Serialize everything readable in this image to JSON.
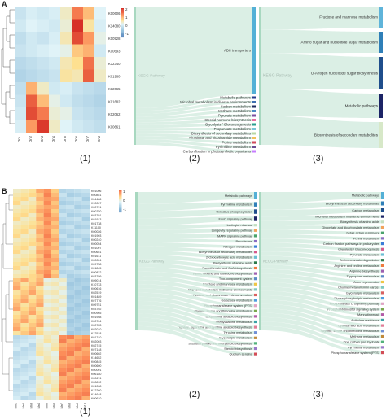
{
  "panels": {
    "A": {
      "letter": "A",
      "heatmap": {
        "rows": [
          "K00606",
          "K14080",
          "K00928",
          "K00693",
          "K12340",
          "K01960",
          "K12065",
          "K01682",
          "K02062",
          "K00661"
        ],
        "cols": [
          "Dn1",
          "Dn2",
          "Dn3",
          "Dn4",
          "Dn5",
          "Dn6",
          "Dn7",
          "Dn8"
        ],
        "values": [
          [
            -0.3,
            -0.1,
            -0.2,
            -0.1,
            0.3,
            1.5,
            0.9,
            0.0
          ],
          [
            -0.2,
            0.0,
            -0.1,
            -0.2,
            0.2,
            2.3,
            0.5,
            -0.1
          ],
          [
            -0.4,
            -0.2,
            -0.3,
            -0.1,
            0.4,
            2.0,
            1.2,
            0.1
          ],
          [
            -0.3,
            -0.2,
            -0.1,
            0.0,
            0.1,
            0.8,
            1.0,
            -0.2
          ],
          [
            -0.5,
            -0.4,
            -0.3,
            -0.2,
            0.4,
            0.6,
            1.6,
            0.2
          ],
          [
            -0.6,
            -0.5,
            -0.4,
            -0.3,
            0.5,
            0.4,
            1.8,
            0.3
          ],
          [
            -0.4,
            1.0,
            0.3,
            -0.2,
            -0.1,
            -0.3,
            -0.4,
            -0.5
          ],
          [
            -0.3,
            1.8,
            0.9,
            0.1,
            -0.2,
            -0.4,
            -0.5,
            -0.6
          ],
          [
            -0.2,
            2.0,
            1.5,
            0.2,
            0.1,
            -0.3,
            -0.4,
            -0.5
          ],
          [
            -0.1,
            1.2,
            2.2,
            0.3,
            0.0,
            -0.2,
            -0.3,
            -0.4
          ]
        ],
        "legend": [
          "2",
          "1",
          "0",
          "-1"
        ]
      },
      "sankey2": {
        "source": "KEGG Pathway",
        "items": [
          "ABC transporters",
          "Metabolic pathways",
          "Microbial metabolism in diverse environments",
          "Carbon metabolism",
          "Methane metabolism",
          "Pyruvate metabolism",
          "Steroid hormone biosynthesis",
          "Glycolysis / Gluconeogenesis",
          "Propanoate metabolism",
          "Biosynthesis of secondary metabolites",
          "Nicotinate and nicotinamide metabolism",
          "Purine metabolism",
          "Pyrimidine metabolism",
          "Carbon fixation in photosynthetic organisms"
        ],
        "colors": [
          "#54b0d6",
          "#243a8c",
          "#3e6fb0",
          "#1e2a5e",
          "#4b8ac4",
          "#7b4fa0",
          "#e86aa0",
          "#2a9d8f",
          "#79c3d8",
          "#b8d7a3",
          "#f0c05a",
          "#d1495b",
          "#6a4c93",
          "#c77dff"
        ]
      },
      "sankey3": {
        "source": "KEGG Pathway",
        "items": [
          "Fructose and mannose metabolism",
          "Amino sugar and nucleotide sugar metabolism",
          "O-Antigen nucleotide sugar biosynthesis",
          "Metabolic pathways",
          "Biosynthesis of secondary metabolites"
        ],
        "colors": [
          "#5fb4da",
          "#2f7fb8",
          "#1f4e8c",
          "#1c2466",
          "#d7e8c8"
        ]
      },
      "labels": [
        "(1)",
        "(2)",
        "(3)"
      ]
    },
    "B": {
      "letter": "B",
      "heatmap": {
        "rows": [
          "K01006",
          "K00851",
          "K04486",
          "K10007",
          "K00791",
          "K00750",
          "K03701",
          "K01913",
          "K01738",
          "K11100",
          "K00026",
          "K01903",
          "K00240",
          "K00054",
          "K01007",
          "K00651",
          "K01611",
          "K00024",
          "K09758",
          "K01845",
          "K00832",
          "K03799",
          "K09014",
          "K10733",
          "K00616",
          "K02519",
          "K01489",
          "K07776",
          "K09751",
          "K03702",
          "K00965",
          "K01958",
          "K00764",
          "K00783",
          "K02010",
          "K12518",
          "K01740",
          "K02003",
          "K02745",
          "K07148",
          "K00602",
          "K14652",
          "K00845",
          "K00600",
          "K00001",
          "K06180",
          "K00674",
          "K00812",
          "K01008",
          "K12260",
          "K14648",
          "K00610"
        ],
        "cols": [
          "Mn1",
          "Mn2",
          "Mn3",
          "Mn4",
          "Mn5",
          "Mn6",
          "Mn7",
          "Mn8",
          "Mn9",
          "Mn10"
        ],
        "legend": [
          "1",
          "0",
          "-1"
        ]
      },
      "sankey2": {
        "source": "KEGG Pathway",
        "items": [
          "Metabolic pathways",
          "Pyrimidine metabolism",
          "Oxidative phosphorylation",
          "FoxO signaling pathway",
          "Huntington disease",
          "Longevity regulating pathway",
          "MAPK signaling pathway",
          "Peroxisome",
          "Nitrogen metabolism",
          "Biosynthesis of secondary metabolites",
          "2-Oxocarboxylic acid metabolism",
          "Biosynthesis of amino acids",
          "Pantothenate and CoA biosynthesis",
          "Valine, leucine and isoleucine biosynthesis",
          "Two-component system",
          "Fructose and mannose metabolism",
          "Microbial metabolism in diverse environments",
          "Pentose and glucuronate interconversions",
          "Galactose metabolism",
          "Phosphotransferase system (PTS)",
          "Glycine, serine and threonine metabolism",
          "Isoquinoline alkaloid biosynthesis",
          "Phenylalanine metabolism",
          "Tropane, piperidine and pyridine alkaloid biosynthesis",
          "Tyrosine metabolism",
          "Glycerolipid metabolism",
          "Sesquiterpenoid and triterpenoid biosynthesis",
          "Steroid biosynthesis",
          "Quorum sensing"
        ],
        "colors": [
          "#54b0d6",
          "#2f7fb8",
          "#1f4e8c",
          "#1c2466",
          "#c3dfc0",
          "#f2a25c",
          "#4aa36b",
          "#8a6cc2",
          "#3b7dd8",
          "#d65a8c",
          "#6abed4",
          "#2c7a4b",
          "#f07b3f",
          "#9e5fb0",
          "#5b8ac6",
          "#efc646",
          "#7ec8c0",
          "#d96060",
          "#4d9de0",
          "#e1a3c4",
          "#7aa74d",
          "#b45ba8",
          "#3aa1a6",
          "#e27b96",
          "#6f8fd6",
          "#c18a3c",
          "#52b27a",
          "#9b79c9",
          "#d24d57"
        ]
      },
      "sankey3": {
        "source": "KEGG Pathway",
        "items": [
          "Metabolic pathways",
          "Biosynthesis of secondary metabolites",
          "Carbon metabolism",
          "Microbial metabolism in diverse environments",
          "Biosynthesis of amino acids",
          "Glyoxylate and dicarboxylate metabolism",
          "beta-Lactam resistance",
          "Purine metabolism",
          "Carbon fixation pathways in prokaryotes",
          "Glycolysis / Gluconeogenesis",
          "Pyruvate metabolism",
          "Aminobenzoate degradation",
          "Arginine and proline metabolism",
          "Arginine biosynthesis",
          "Tryptophan metabolism",
          "Axon regeneration",
          "Choline metabolism in cancer",
          "Glycerolipid metabolism",
          "Glycerophospholipid metabolism",
          "Phospholipase D signaling pathway",
          "Phosphatidylinositol signaling system",
          "Mannatin repair",
          "Antifolate resistance",
          "Cyanoamino acid metabolism",
          "Glycine, serine and threonine metabolism",
          "Methane metabolism",
          "One carbon pool by folate",
          "Pyrimidine metabolism",
          "Phosphotransferase system (PTS)"
        ],
        "colors": [
          "#54b0d6",
          "#2f7fb8",
          "#1f4e8c",
          "#1c2466",
          "#c3dfc0",
          "#f2a25c",
          "#4aa36b",
          "#8a6cc2",
          "#3b7dd8",
          "#d65a8c",
          "#6abed4",
          "#2c7a4b",
          "#f07b3f",
          "#9e5fb0",
          "#5b8ac6",
          "#efc646",
          "#7ec8c0",
          "#d96060",
          "#4d9de0",
          "#e1a3c4",
          "#7aa74d",
          "#b45ba8",
          "#3aa1a6",
          "#e27b96",
          "#6f8fd6",
          "#c18a3c",
          "#52b27a",
          "#9b79c9",
          "#d24d57"
        ]
      },
      "labels": [
        "(1)",
        "(2)",
        "(3)"
      ]
    }
  }
}
